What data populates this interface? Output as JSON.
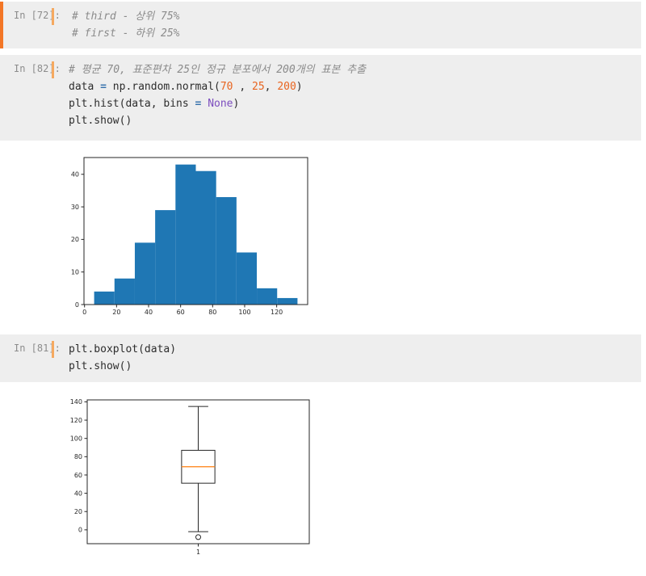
{
  "theme": {
    "cell_bg": "#eeeeee",
    "accent_orange": "#f37626",
    "caret_orange": "#f5a960",
    "prompt_color": "#8c8c8c",
    "axis_color": "#262626"
  },
  "cells": [
    {
      "prompt": "In [72]:",
      "lines": [
        [
          [
            "com",
            "# third - 상위 75%"
          ]
        ],
        [
          [
            "com",
            "# first - 하위 25%"
          ]
        ]
      ]
    },
    {
      "prompt": "In [82]:",
      "lines": [
        [
          [
            "com",
            "# 평균 70, 표준편차 25인 정규 분포에서 200개의 표본 추출"
          ]
        ],
        [
          [
            "pln",
            "data "
          ],
          [
            "op",
            "="
          ],
          [
            "pln",
            " np.random.normal("
          ],
          [
            "num",
            "70"
          ],
          [
            "pln",
            " , "
          ],
          [
            "num",
            "25"
          ],
          [
            "pln",
            ", "
          ],
          [
            "num",
            "200"
          ],
          [
            "pln",
            ")"
          ]
        ],
        [
          [
            "pln",
            "plt.hist(data, bins "
          ],
          [
            "op",
            "="
          ],
          [
            "pln",
            " "
          ],
          [
            "kw",
            "None"
          ],
          [
            "pln",
            ")"
          ]
        ],
        [
          [
            "pln",
            "plt.show()"
          ]
        ]
      ]
    },
    {
      "prompt": "In [81]:",
      "lines": [
        [
          [
            "pln",
            "plt.boxplot(data)"
          ]
        ],
        [
          [
            "pln",
            "plt.show()"
          ]
        ]
      ]
    }
  ],
  "chart_data": [
    {
      "type": "bar",
      "subtype": "histogram",
      "title": "",
      "xlabel": "",
      "ylabel": "",
      "n_samples": 200,
      "bin_edges": [
        6.0,
        18.7,
        31.4,
        44.1,
        56.8,
        69.5,
        82.2,
        94.9,
        107.6,
        120.3,
        133.0
      ],
      "values": [
        4,
        8,
        19,
        29,
        43,
        41,
        33,
        16,
        5,
        2
      ],
      "bar_color": "#1f77b4",
      "xticks": [
        0,
        20,
        40,
        60,
        80,
        100,
        120
      ],
      "yticks": [
        0,
        10,
        20,
        30,
        40
      ],
      "xlim": [
        -0.35,
        139.35
      ],
      "ylim": [
        0,
        45.15
      ],
      "grid": false,
      "legend": null
    },
    {
      "type": "boxplot",
      "title": "",
      "xlabel": "",
      "ylabel": "",
      "categories": [
        "1"
      ],
      "whisker_low": -2,
      "q1": 51,
      "median": 69,
      "q3": 87,
      "whisker_high": 135,
      "outliers": [
        -8
      ],
      "box_color": "#262626",
      "median_color": "#ff7f0e",
      "yticks": [
        0,
        20,
        40,
        60,
        80,
        100,
        120,
        140
      ],
      "xlim": [
        0.5,
        1.5
      ],
      "ylim": [
        -15.15,
        142.15
      ],
      "box_width_data": 0.15,
      "grid": false,
      "legend": null
    }
  ]
}
